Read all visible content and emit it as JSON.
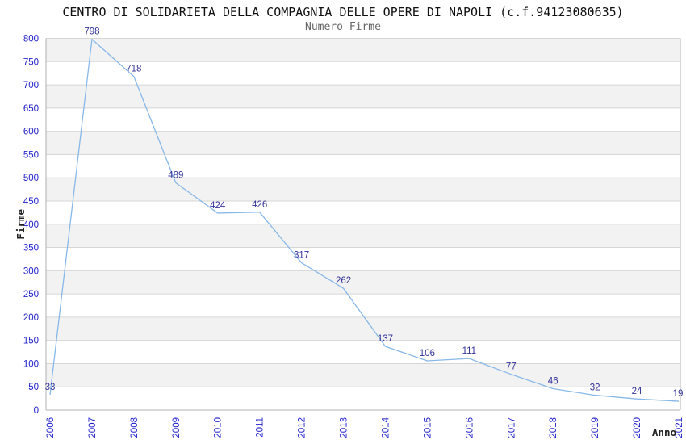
{
  "header": {
    "title": "CENTRO DI SOLIDARIETA DELLA COMPAGNIA DELLE OPERE DI NAPOLI (c.f.94123080635)",
    "subtitle": "Numero Firme"
  },
  "chart_data": {
    "type": "line",
    "title": "CENTRO DI SOLIDARIETA DELLA COMPAGNIA DELLE OPERE DI NAPOLI (c.f.94123080635)",
    "subtitle": "Numero Firme",
    "x": [
      "2006",
      "2007",
      "2008",
      "2009",
      "2010",
      "2011",
      "2012",
      "2013",
      "2014",
      "2015",
      "2016",
      "2017",
      "2018",
      "2019",
      "2020",
      "2021"
    ],
    "values": [
      33,
      798,
      718,
      489,
      424,
      426,
      317,
      262,
      137,
      106,
      111,
      77,
      46,
      32,
      24,
      19
    ],
    "xlabel": "Anno",
    "ylabel": "Firme",
    "ylim": [
      0,
      800
    ],
    "ytick_step": 50,
    "grid": true,
    "legend": "none",
    "data_labels_visible": true,
    "colors": {
      "line": "#88b8e8",
      "tick_label": "#2222cc",
      "data_label": "#333399",
      "band_gray": "#f2f2f2",
      "gridline": "#d6d6d6",
      "axis_border": "#b0b0b0",
      "title": "#111111",
      "subtitle": "#666666",
      "axis_label": "#222222",
      "background": "#ffffff"
    }
  }
}
